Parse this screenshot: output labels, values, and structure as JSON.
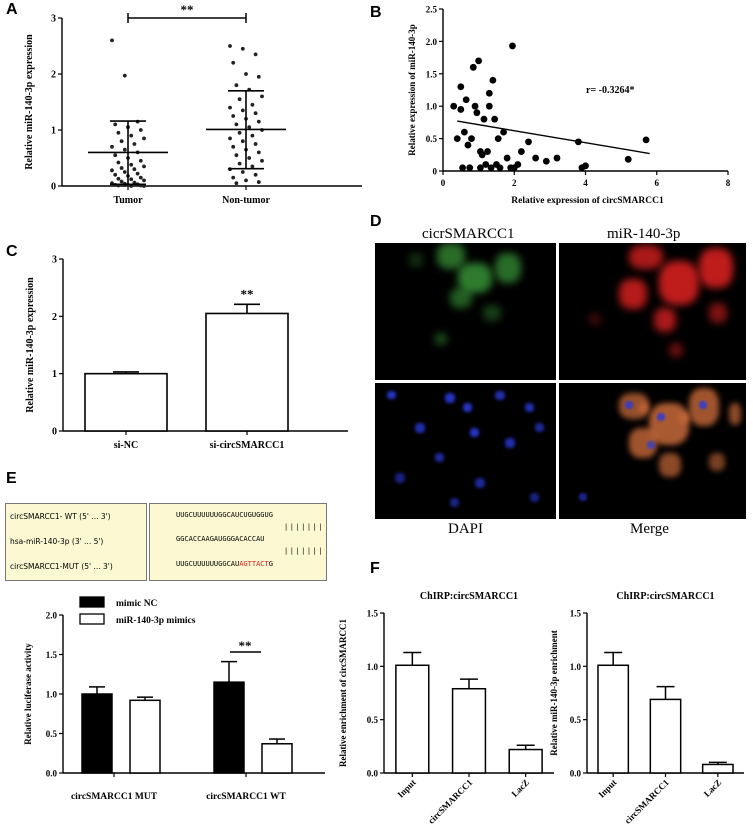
{
  "panels": {
    "A": "A",
    "B": "B",
    "C": "C",
    "D": "D",
    "E": "E",
    "F": "F"
  },
  "chart_data": [
    {
      "id": "A",
      "type": "scatter",
      "ylabel": "Relative  miR-140-3p expression",
      "categories": [
        "Tumor",
        "Non-tumor"
      ],
      "ylim": [
        0,
        3
      ],
      "yticks": [
        "0",
        "1",
        "2",
        "3"
      ],
      "summary": [
        {
          "mean": 0.6,
          "sd_low": 0.03,
          "sd_high": 1.16
        },
        {
          "mean": 1.01,
          "sd_low": 0.31,
          "sd_high": 1.7
        }
      ],
      "points": [
        [
          2.6,
          1.97,
          1.15,
          1.1,
          1.05,
          1.0,
          0.95,
          0.9,
          0.85,
          0.8,
          0.75,
          0.7,
          0.65,
          0.6,
          0.55,
          0.5,
          0.45,
          0.42,
          0.38,
          0.35,
          0.32,
          0.3,
          0.28,
          0.25,
          0.22,
          0.2,
          0.18,
          0.15,
          0.13,
          0.12,
          0.1,
          0.08,
          0.06,
          0.05,
          0.04,
          0.03,
          0.02,
          0.02,
          0.01,
          0.01,
          0.0,
          0.0
        ],
        [
          2.5,
          2.45,
          2.35,
          2.2,
          2.0,
          1.95,
          1.8,
          1.72,
          1.6,
          1.55,
          1.45,
          1.4,
          1.35,
          1.3,
          1.25,
          1.2,
          1.15,
          1.1,
          1.05,
          1.0,
          0.95,
          0.9,
          0.85,
          0.8,
          0.75,
          0.7,
          0.65,
          0.6,
          0.55,
          0.5,
          0.45,
          0.4,
          0.35,
          0.3,
          0.25,
          0.2,
          0.15,
          0.1,
          0.07,
          0.05
        ]
      ],
      "significance": "**"
    },
    {
      "id": "B",
      "type": "scatter",
      "xlabel": "Relative expression of circSMARCC1",
      "ylabel": "Relative expression of miR-140-3p",
      "xlim": [
        0,
        8
      ],
      "ylim": [
        0,
        2.5
      ],
      "xticks": [
        "0",
        "2",
        "4",
        "6",
        "8"
      ],
      "yticks": [
        "0",
        "0.5",
        "1.0",
        "1.5",
        "2.0",
        "2.5"
      ],
      "annotation": "r= -0.3264*",
      "fit": {
        "x": [
          0.4,
          5.8
        ],
        "y": [
          0.77,
          0.27
        ]
      },
      "x": [
        0.3,
        0.4,
        0.5,
        0.55,
        0.6,
        0.65,
        0.7,
        0.75,
        0.8,
        0.85,
        0.9,
        0.95,
        1.0,
        1.05,
        1.1,
        1.15,
        1.2,
        1.25,
        1.3,
        1.35,
        1.4,
        1.45,
        1.5,
        1.55,
        1.6,
        1.7,
        1.8,
        1.9,
        2.0,
        2.1,
        2.2,
        2.4,
        2.6,
        2.9,
        3.2,
        3.8,
        3.9,
        4.0,
        5.2,
        5.7,
        1.3,
        1.05,
        0.5,
        1.95
      ],
      "y": [
        1.0,
        0.5,
        1.3,
        0.05,
        0.6,
        1.1,
        0.4,
        0.05,
        0.5,
        1.6,
        1.0,
        0.9,
        1.7,
        0.3,
        0.25,
        0.8,
        0.1,
        0.3,
        1.2,
        0.05,
        1.4,
        0.8,
        0.1,
        0.5,
        0.05,
        0.6,
        0.2,
        0.05,
        0.05,
        0.1,
        0.3,
        0.45,
        0.2,
        0.15,
        0.2,
        0.45,
        0.05,
        0.08,
        0.18,
        0.48,
        1.0,
        0.05,
        0.95,
        1.93
      ]
    },
    {
      "id": "C",
      "type": "bar",
      "ylabel": "Relative  miR-140-3p expression",
      "categories": [
        "si-NC",
        "si-circSMARCC1"
      ],
      "values": [
        1.0,
        2.05
      ],
      "errors": [
        0.03,
        0.16
      ],
      "ylim": [
        0,
        3
      ],
      "yticks": [
        "0",
        "1",
        "2",
        "3"
      ],
      "significance": "**"
    },
    {
      "id": "E",
      "type": "bar",
      "ylabel": "Relative luciferase activity",
      "categories": [
        "circSMARCC1 MUT",
        "circSMARCC1 WT"
      ],
      "series": [
        {
          "name": "mimic NC",
          "color": "#000000",
          "values": [
            1.0,
            1.15
          ],
          "errors": [
            0.09,
            0.26
          ]
        },
        {
          "name": "miR-140-3p mimics",
          "color": "#ffffff",
          "values": [
            0.92,
            0.37
          ],
          "errors": [
            0.04,
            0.06
          ]
        }
      ],
      "ylim": [
        0,
        2.0
      ],
      "yticks": [
        "0.0",
        "0.5",
        "1.0",
        "1.5",
        "2.0"
      ],
      "significance": "**"
    },
    {
      "id": "F1",
      "type": "bar",
      "title": "ChIRP:circSMARCC1",
      "ylabel": "Relative enrichment of circSMARCC1",
      "categories": [
        "Input",
        "circSMARCC1",
        "LacZ"
      ],
      "values": [
        1.01,
        0.79,
        0.22
      ],
      "errors": [
        0.12,
        0.09,
        0.04
      ],
      "ylim": [
        0,
        1.5
      ],
      "yticks": [
        "0.0",
        "0.5",
        "1.0",
        "1.5"
      ]
    },
    {
      "id": "F2",
      "type": "bar",
      "title": "ChIRP:circSMARCC1",
      "ylabel": "Relative miR-140-3p enrichment",
      "categories": [
        "Input",
        "circSMARCC1",
        "LacZ"
      ],
      "values": [
        1.01,
        0.69,
        0.08
      ],
      "errors": [
        0.12,
        0.12,
        0.02
      ],
      "ylim": [
        0,
        1.5
      ],
      "yticks": [
        "0.0",
        "0.5",
        "1.0",
        "1.5"
      ]
    }
  ],
  "microscopy": {
    "labels": {
      "top_left": "cicrSMARCC1",
      "top_right": "miR-140-3p",
      "bottom_left": "DAPI",
      "bottom_right": "Merge"
    },
    "colors": {
      "green": "#3a9a3a",
      "red": "#d42020",
      "blue": "#2a3ad8",
      "merge": "#c86a3a"
    }
  },
  "sequences": {
    "labels": [
      "circSMARCC1- WT (5' ... 3')",
      "hsa-miR-140-3p (3' ... 5')",
      "circSMARCC1-MUT (5' ... 3')"
    ],
    "wt": "UUGCUUUUUUGGCAUCUGUGGUG",
    "bars1": "|||||||",
    "mir": "GGCACCAAGAUGGGACACCAU",
    "bars2": "|||||||",
    "mut_prefix": "UUGCUUUUUUGGCAU",
    "mut_highlight": "AGTTACT",
    "mut_suffix": "G",
    "highlight_color": "#e02020"
  }
}
